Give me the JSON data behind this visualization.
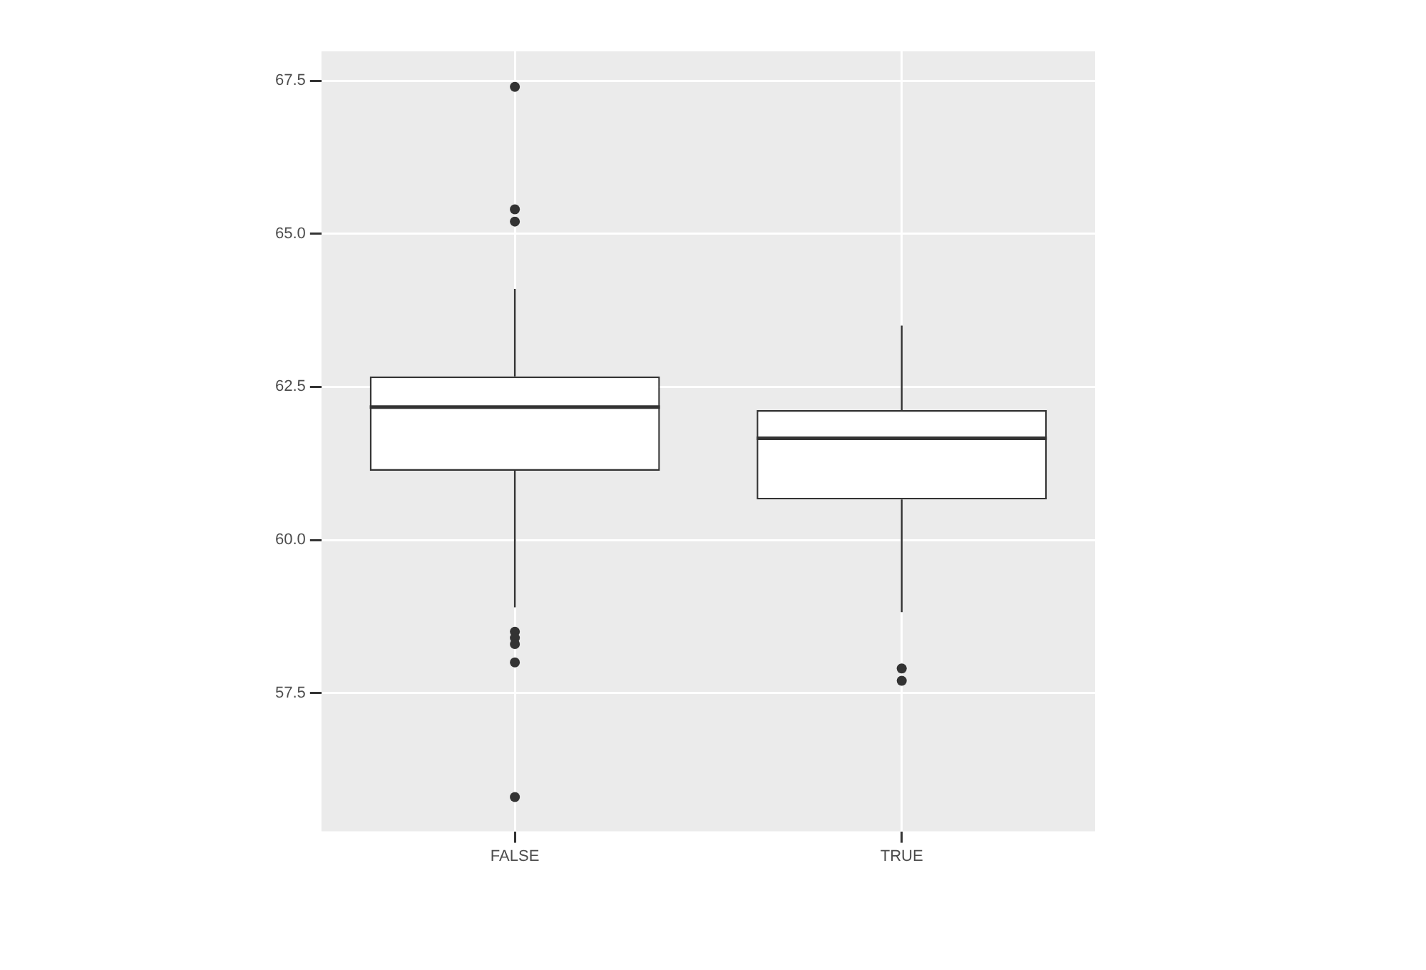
{
  "chart_data": {
    "type": "box",
    "categories": [
      "FALSE",
      "TRUE"
    ],
    "boxes": [
      {
        "low": 58.9,
        "q1": 61.13,
        "median": 62.17,
        "q3": 62.67,
        "high": 64.1,
        "outliers": [
          67.4,
          65.4,
          65.2,
          58.5,
          58.4,
          58.3,
          58.0,
          55.8
        ]
      },
      {
        "low": 58.82,
        "q1": 60.66,
        "median": 61.66,
        "q3": 62.12,
        "high": 63.5,
        "outliers": [
          57.9,
          57.7
        ]
      }
    ],
    "ylim": [
      55.24,
      67.98
    ],
    "yticks": [
      {
        "value": 57.5,
        "label": "57.5"
      },
      {
        "value": 60,
        "label": "60.0"
      },
      {
        "value": 62.5,
        "label": "62.5"
      },
      {
        "value": 65,
        "label": "65.0"
      },
      {
        "value": 67.5,
        "label": "67.5"
      }
    ],
    "grid": true,
    "legend": false
  }
}
